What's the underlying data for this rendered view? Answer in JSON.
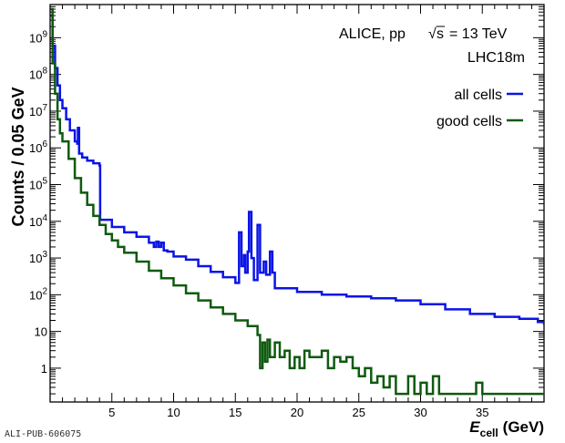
{
  "chart_data": {
    "type": "line",
    "x_unit_label": "(GeV)",
    "xlabel": "E",
    "xlabel_sub": "cell",
    "ylabel": "Counts / 0.05 GeV",
    "x_ticks": [
      "5",
      "10",
      "15",
      "20",
      "25",
      "30",
      "35"
    ],
    "y_ticks": [
      "1",
      "10",
      "10^2",
      "10^3",
      "10^4",
      "10^5",
      "10^6",
      "10^7",
      "10^8",
      "10^9"
    ],
    "xlim": [
      0,
      40
    ],
    "ylim": [
      0.12,
      8000000000
    ],
    "yscale": "log",
    "annotations": [
      "ALICE, pp",
      "s",
      "= 13 TeV",
      "LHC18m"
    ],
    "legend_position": "top-right",
    "series": [
      {
        "name": "all cells",
        "color": "#0a14e6",
        "step": true,
        "points": [
          [
            0.05,
            4000000000
          ],
          [
            0.2,
            600000000
          ],
          [
            0.4,
            150000000
          ],
          [
            0.6,
            50000000
          ],
          [
            0.8,
            20000000
          ],
          [
            1.0,
            12000000
          ],
          [
            1.3,
            6000000
          ],
          [
            1.6,
            3000000
          ],
          [
            2.0,
            1500000
          ],
          [
            2.2,
            1300000
          ],
          [
            2.25,
            3500000
          ],
          [
            2.35,
            700000
          ],
          [
            2.6,
            550000
          ],
          [
            3.0,
            450000
          ],
          [
            3.5,
            380000
          ],
          [
            4.0,
            330000
          ],
          [
            4.05,
            11000
          ],
          [
            5.0,
            7000
          ],
          [
            6.0,
            5000
          ],
          [
            7.0,
            3800
          ],
          [
            8.0,
            2600
          ],
          [
            8.4,
            2000
          ],
          [
            8.6,
            2800
          ],
          [
            8.8,
            2000
          ],
          [
            9.0,
            2600
          ],
          [
            9.2,
            1600
          ],
          [
            9.5,
            1500
          ],
          [
            10,
            1100
          ],
          [
            11,
            900
          ],
          [
            12,
            600
          ],
          [
            13,
            420
          ],
          [
            14,
            300
          ],
          [
            15,
            210
          ],
          [
            15.3,
            5000
          ],
          [
            15.5,
            600
          ],
          [
            15.7,
            1200
          ],
          [
            15.8,
            400
          ],
          [
            16.0,
            1500
          ],
          [
            16.1,
            18000
          ],
          [
            16.3,
            1000
          ],
          [
            16.5,
            250
          ],
          [
            16.8,
            8000
          ],
          [
            17.0,
            400
          ],
          [
            17.3,
            800
          ],
          [
            17.5,
            350
          ],
          [
            17.8,
            1500
          ],
          [
            18.0,
            400
          ],
          [
            18.2,
            150
          ],
          [
            20,
            120
          ],
          [
            22,
            100
          ],
          [
            24,
            90
          ],
          [
            26,
            80
          ],
          [
            28,
            70
          ],
          [
            30,
            55
          ],
          [
            32,
            40
          ],
          [
            34,
            30
          ],
          [
            36,
            25
          ],
          [
            38,
            22
          ],
          [
            39.5,
            18
          ],
          [
            40,
            15
          ]
        ]
      },
      {
        "name": "good cells",
        "color": "#0f5a0f",
        "step": true,
        "points": [
          [
            0.05,
            6000000000
          ],
          [
            0.2,
            200000000
          ],
          [
            0.4,
            30000000
          ],
          [
            0.6,
            6000000
          ],
          [
            0.8,
            2500000
          ],
          [
            1.0,
            1500000
          ],
          [
            1.5,
            500000
          ],
          [
            2.0,
            150000
          ],
          [
            2.5,
            60000
          ],
          [
            3.0,
            28000
          ],
          [
            3.5,
            14000
          ],
          [
            4.0,
            8000
          ],
          [
            4.5,
            4500
          ],
          [
            5.0,
            3000
          ],
          [
            5.5,
            2000
          ],
          [
            6.0,
            1400
          ],
          [
            7.0,
            800
          ],
          [
            8.0,
            450
          ],
          [
            9.0,
            280
          ],
          [
            10,
            180
          ],
          [
            11,
            110
          ],
          [
            12,
            70
          ],
          [
            13,
            45
          ],
          [
            14,
            30
          ],
          [
            15,
            20
          ],
          [
            16,
            14
          ],
          [
            16.8,
            8
          ],
          [
            17.0,
            1
          ],
          [
            17.2,
            5
          ],
          [
            17.4,
            1.5
          ],
          [
            17.6,
            6
          ],
          [
            17.8,
            2
          ],
          [
            18.2,
            5
          ],
          [
            18.6,
            2
          ],
          [
            19.0,
            3
          ],
          [
            19.4,
            1
          ],
          [
            19.8,
            2
          ],
          [
            20.2,
            1
          ],
          [
            20.6,
            3
          ],
          [
            21,
            2
          ],
          [
            21.5,
            2
          ],
          [
            22,
            3
          ],
          [
            22.5,
            1
          ],
          [
            23,
            2
          ],
          [
            23.5,
            1.5
          ],
          [
            24,
            2
          ],
          [
            24.5,
            1
          ],
          [
            25,
            0.6
          ],
          [
            25.5,
            1
          ],
          [
            26,
            0.4
          ],
          [
            26.5,
            0.6
          ],
          [
            27,
            0.3
          ],
          [
            27.5,
            0.6
          ],
          [
            28,
            0.2
          ],
          [
            29,
            0.6
          ],
          [
            29.5,
            0.2
          ],
          [
            30,
            0.4
          ],
          [
            30.5,
            0.2
          ],
          [
            31,
            0.6
          ],
          [
            31.5,
            0.2
          ],
          [
            34,
            0.2
          ],
          [
            34.5,
            0.4
          ],
          [
            35,
            0.2
          ],
          [
            40,
            0.2
          ]
        ]
      }
    ]
  },
  "watermark": "ALI-PUB-606075"
}
